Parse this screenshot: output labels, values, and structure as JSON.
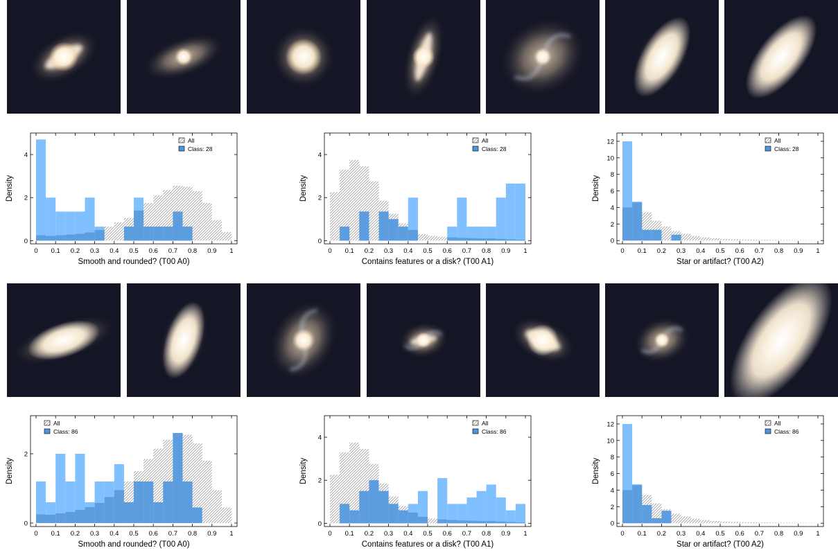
{
  "panels": [
    {
      "thumbs": [
        {
          "icon": "barred-spiral-galaxy-icon",
          "angle": -30,
          "rx": 0.34,
          "ry": 0.19,
          "core": 0.13,
          "bar": 1,
          "color": "#f3c79a"
        },
        {
          "icon": "barred-spiral-galaxy-icon",
          "angle": -20,
          "rx": 0.38,
          "ry": 0.17,
          "core": 0.08,
          "bar": 0,
          "color": "#d9c2a6"
        },
        {
          "icon": "elliptical-galaxy-icon",
          "angle": 0,
          "rx": 0.28,
          "ry": 0.28,
          "core": 0.16,
          "bar": 0,
          "color": "#fbe0ad"
        },
        {
          "icon": "barred-spiral-galaxy-icon",
          "angle": -75,
          "rx": 0.4,
          "ry": 0.16,
          "core": 0.1,
          "bar": 1,
          "color": "#f4d9b6"
        },
        {
          "icon": "spiral-galaxy-icon",
          "angle": -30,
          "rx": 0.4,
          "ry": 0.33,
          "core": 0.08,
          "bar": 0,
          "color": "#d8c7b3"
        },
        {
          "icon": "edge-on-galaxy-icon",
          "angle": -60,
          "rx": 0.34,
          "ry": 0.22,
          "core": 0.18,
          "bar": 0,
          "color": "#fff2dc"
        },
        {
          "icon": "edge-on-galaxy-icon",
          "angle": -52,
          "rx": 0.46,
          "ry": 0.2,
          "core": 0.2,
          "bar": 0,
          "color": "#fff4e4"
        }
      ],
      "charts": [
        {
          "type": "bar",
          "xlabel": "Smooth and rounded?   (T00 A0)",
          "ylabel": "Density",
          "legend": {
            "position": "top-right",
            "all": "All",
            "cls": "Class: 28"
          },
          "bins": [
            0,
            0.05,
            0.1,
            0.15,
            0.2,
            0.25,
            0.3,
            0.35,
            0.4,
            0.45,
            0.5,
            0.55,
            0.6,
            0.65,
            0.7,
            0.75,
            0.8,
            0.85,
            0.9,
            0.95,
            1
          ],
          "xticks": [
            "0",
            "0.1",
            "0.2",
            "0.3",
            "0.4",
            "0.5",
            "0.6",
            "0.7",
            "0.8",
            "0.9",
            "1"
          ],
          "xtick_values": [
            0,
            0.1,
            0.2,
            0.3,
            0.4,
            0.5,
            0.6,
            0.7,
            0.8,
            0.9,
            1
          ],
          "yticks": [
            0,
            2,
            4
          ],
          "ylim": [
            -0.15,
            5.0
          ],
          "series": [
            {
              "name": "All",
              "values": [
                0.25,
                0.22,
                0.25,
                0.28,
                0.32,
                0.38,
                0.5,
                0.65,
                0.85,
                1.05,
                1.4,
                1.75,
                2.1,
                2.35,
                2.55,
                2.5,
                2.3,
                1.75,
                0.95,
                0.4
              ]
            },
            {
              "name": "Class: 28",
              "values": [
                4.7,
                2.0,
                1.35,
                1.35,
                1.35,
                2.0,
                0.65,
                0.0,
                0.0,
                0.65,
                2.0,
                0.65,
                0.65,
                0.65,
                1.35,
                0.65,
                0.0,
                0.0,
                0.0,
                0.0
              ]
            }
          ]
        },
        {
          "type": "bar",
          "xlabel": "Contains features or a disk?   (T00 A1)",
          "ylabel": "Density",
          "legend": {
            "position": "top-right",
            "all": "All",
            "cls": "Class: 28"
          },
          "bins": [
            0,
            0.05,
            0.1,
            0.15,
            0.2,
            0.25,
            0.3,
            0.35,
            0.4,
            0.45,
            0.5,
            0.55,
            0.6,
            0.65,
            0.7,
            0.75,
            0.8,
            0.85,
            0.9,
            0.95,
            1
          ],
          "xticks": [
            "0",
            "0.1",
            "0.2",
            "0.3",
            "0.4",
            "0.5",
            "0.6",
            "0.7",
            "0.8",
            "0.9",
            "1"
          ],
          "xtick_values": [
            0,
            0.1,
            0.2,
            0.3,
            0.4,
            0.5,
            0.6,
            0.7,
            0.8,
            0.9,
            1
          ],
          "yticks": [
            0,
            2,
            4
          ],
          "ylim": [
            -0.15,
            5.0
          ],
          "series": [
            {
              "name": "All",
              "values": [
                2.25,
                3.3,
                3.75,
                3.45,
                2.75,
                1.85,
                1.25,
                0.8,
                0.5,
                0.3,
                0.22,
                0.18,
                0.15,
                0.13,
                0.12,
                0.1,
                0.1,
                0.08,
                0.06,
                0.04
              ]
            },
            {
              "name": "Class: 28",
              "values": [
                0.0,
                0.65,
                0.0,
                1.35,
                0.0,
                1.35,
                1.0,
                0.65,
                2.0,
                0.0,
                0.0,
                0.0,
                0.65,
                2.0,
                0.65,
                0.65,
                0.65,
                2.0,
                2.65,
                2.65
              ]
            }
          ]
        },
        {
          "type": "bar",
          "xlabel": "Star or artifact?   (T00 A2)",
          "ylabel": "Density",
          "legend": {
            "position": "top-right",
            "all": "All",
            "cls": "Class: 28"
          },
          "bins": [
            0,
            0.05,
            0.1,
            0.15,
            0.2,
            0.25,
            0.3,
            0.35,
            0.4,
            0.45,
            0.5,
            0.55,
            0.6,
            0.65,
            0.7,
            0.75,
            0.8,
            0.85,
            0.9,
            0.95,
            1
          ],
          "xticks": [
            "0",
            "0.1",
            "0.2",
            "0.3",
            "0.4",
            "0.5",
            "0.6",
            "0.7",
            "0.8",
            "0.9",
            "1"
          ],
          "xtick_values": [
            0,
            0.1,
            0.2,
            0.3,
            0.4,
            0.5,
            0.6,
            0.7,
            0.8,
            0.9,
            1
          ],
          "yticks": [
            0,
            2,
            4,
            6,
            8,
            10,
            12
          ],
          "ylim": [
            -0.4,
            13.0
          ],
          "series": [
            {
              "name": "All",
              "values": [
                4.0,
                4.6,
                3.4,
                2.4,
                1.7,
                1.15,
                0.8,
                0.55,
                0.38,
                0.27,
                0.2,
                0.16,
                0.13,
                0.11,
                0.09,
                0.08,
                0.07,
                0.06,
                0.05,
                0.04
              ]
            },
            {
              "name": "Class: 28",
              "values": [
                12.0,
                4.7,
                1.3,
                1.3,
                0.0,
                0.7,
                0.0,
                0.0,
                0.0,
                0.0,
                0.0,
                0.0,
                0.0,
                0.0,
                0.0,
                0.0,
                0.0,
                0.0,
                0.0,
                0.0
              ]
            }
          ]
        }
      ]
    },
    {
      "thumbs": [
        {
          "icon": "edge-on-galaxy-icon",
          "angle": -18,
          "rx": 0.48,
          "ry": 0.17,
          "core": 0.15,
          "bar": 0,
          "color": "#fff1dc"
        },
        {
          "icon": "edge-on-galaxy-icon",
          "angle": -72,
          "rx": 0.38,
          "ry": 0.2,
          "core": 0.16,
          "bar": 0,
          "color": "#fff0de"
        },
        {
          "icon": "spiral-galaxy-icon",
          "angle": -60,
          "rx": 0.38,
          "ry": 0.28,
          "core": 0.1,
          "bar": 0,
          "color": "#e8d3b7"
        },
        {
          "icon": "spiral-galaxy-icon",
          "angle": -10,
          "rx": 0.22,
          "ry": 0.16,
          "core": 0.07,
          "bar": 1,
          "color": "#f4dcc0"
        },
        {
          "icon": "barred-spiral-galaxy-icon",
          "angle": 25,
          "rx": 0.3,
          "ry": 0.18,
          "core": 0.14,
          "bar": 1,
          "color": "#fff2e0"
        },
        {
          "icon": "spiral-galaxy-icon",
          "angle": -20,
          "rx": 0.26,
          "ry": 0.2,
          "core": 0.07,
          "bar": 0,
          "color": "#e4c9a8"
        },
        {
          "icon": "edge-on-galaxy-icon",
          "angle": -55,
          "rx": 0.56,
          "ry": 0.3,
          "core": 0.3,
          "bar": 0,
          "color": "#fff5ea"
        }
      ],
      "charts": [
        {
          "type": "bar",
          "xlabel": "Smooth and rounded?   (T00 A0)",
          "ylabel": "Density",
          "legend": {
            "position": "top-left",
            "all": "All",
            "cls": "Class: 86"
          },
          "bins": [
            0,
            0.05,
            0.1,
            0.15,
            0.2,
            0.25,
            0.3,
            0.35,
            0.4,
            0.45,
            0.5,
            0.55,
            0.6,
            0.65,
            0.7,
            0.75,
            0.8,
            0.85,
            0.9,
            0.95,
            1
          ],
          "xticks": [
            "0",
            "0.1",
            "0.2",
            "0.3",
            "0.4",
            "0.5",
            "0.6",
            "0.7",
            "0.8",
            "0.9",
            "1"
          ],
          "xtick_values": [
            0,
            0.1,
            0.2,
            0.3,
            0.4,
            0.5,
            0.6,
            0.7,
            0.8,
            0.9,
            1
          ],
          "yticks": [
            0,
            2
          ],
          "ylim": [
            -0.1,
            3.1
          ],
          "series": [
            {
              "name": "All",
              "values": [
                0.25,
                0.24,
                0.28,
                0.32,
                0.38,
                0.46,
                0.58,
                0.75,
                0.95,
                1.2,
                1.5,
                1.85,
                2.15,
                2.4,
                2.6,
                2.55,
                2.3,
                1.8,
                0.95,
                0.45
              ]
            },
            {
              "name": "Class: 86",
              "values": [
                1.2,
                0.6,
                2.0,
                1.2,
                2.0,
                0.6,
                1.2,
                1.2,
                1.7,
                0.6,
                1.2,
                1.2,
                0.6,
                1.2,
                2.6,
                1.2,
                0.45,
                0.0,
                0.0,
                0.0
              ]
            }
          ]
        },
        {
          "type": "bar",
          "xlabel": "Contains features or a disk?   (T00 A1)",
          "ylabel": "Density",
          "legend": {
            "position": "top-right",
            "all": "All",
            "cls": "Class: 86"
          },
          "bins": [
            0,
            0.05,
            0.1,
            0.15,
            0.2,
            0.25,
            0.3,
            0.35,
            0.4,
            0.45,
            0.5,
            0.55,
            0.6,
            0.65,
            0.7,
            0.75,
            0.8,
            0.85,
            0.9,
            0.95,
            1
          ],
          "xticks": [
            "0",
            "0.1",
            "0.2",
            "0.3",
            "0.4",
            "0.5",
            "0.6",
            "0.7",
            "0.8",
            "0.9",
            "1"
          ],
          "xtick_values": [
            0,
            0.1,
            0.2,
            0.3,
            0.4,
            0.5,
            0.6,
            0.7,
            0.8,
            0.9,
            1
          ],
          "yticks": [
            0,
            2,
            4
          ],
          "ylim": [
            -0.15,
            5.0
          ],
          "series": [
            {
              "name": "All",
              "values": [
                2.25,
                3.3,
                3.75,
                3.45,
                2.75,
                1.85,
                1.25,
                0.8,
                0.5,
                0.3,
                0.22,
                0.18,
                0.15,
                0.13,
                0.12,
                0.1,
                0.1,
                0.08,
                0.06,
                0.04
              ]
            },
            {
              "name": "Class: 86",
              "values": [
                0.0,
                0.9,
                0.6,
                1.5,
                2.0,
                1.5,
                0.9,
                0.6,
                0.9,
                1.5,
                0.0,
                2.1,
                0.9,
                0.9,
                1.2,
                1.5,
                1.8,
                1.2,
                0.6,
                0.9
              ]
            }
          ]
        },
        {
          "type": "bar",
          "xlabel": "Star or artifact?   (T00 A2)",
          "ylabel": "Density",
          "legend": {
            "position": "top-right",
            "all": "All",
            "cls": "Class: 86"
          },
          "bins": [
            0,
            0.05,
            0.1,
            0.15,
            0.2,
            0.25,
            0.3,
            0.35,
            0.4,
            0.45,
            0.5,
            0.55,
            0.6,
            0.65,
            0.7,
            0.75,
            0.8,
            0.85,
            0.9,
            0.95,
            1
          ],
          "xticks": [
            "0",
            "0.1",
            "0.2",
            "0.3",
            "0.4",
            "0.5",
            "0.6",
            "0.7",
            "0.8",
            "0.9",
            "1"
          ],
          "xtick_values": [
            0,
            0.1,
            0.2,
            0.3,
            0.4,
            0.5,
            0.6,
            0.7,
            0.8,
            0.9,
            1
          ],
          "yticks": [
            0,
            2,
            4,
            6,
            8,
            10,
            12
          ],
          "ylim": [
            -0.4,
            13.0
          ],
          "series": [
            {
              "name": "All",
              "values": [
                4.0,
                4.6,
                3.4,
                2.4,
                1.7,
                1.15,
                0.8,
                0.55,
                0.38,
                0.27,
                0.2,
                0.16,
                0.13,
                0.11,
                0.09,
                0.08,
                0.07,
                0.06,
                0.05,
                0.04
              ]
            },
            {
              "name": "Class: 86",
              "values": [
                12.0,
                4.7,
                2.2,
                0.6,
                1.5,
                0.0,
                0.0,
                0.0,
                0.0,
                0.0,
                0.0,
                0.0,
                0.0,
                0.0,
                0.0,
                0.0,
                0.0,
                0.0,
                0.0,
                0.0
              ]
            }
          ]
        }
      ]
    }
  ],
  "colors": {
    "class_fill": "#80c0ff",
    "class_overlap": "#4f95de",
    "all_hatch": "#9a9a9a",
    "thumb_bg": "#151625"
  }
}
